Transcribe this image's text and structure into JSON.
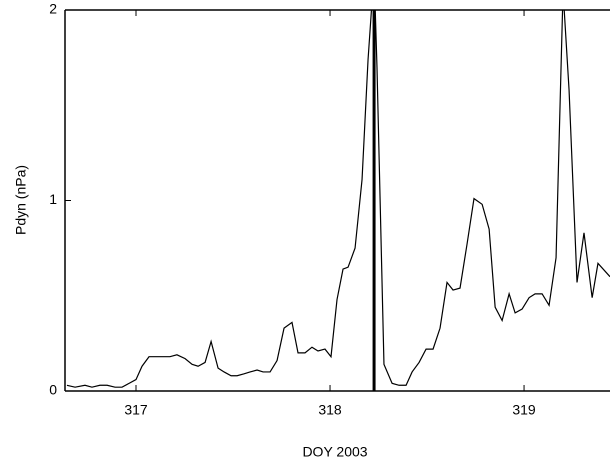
{
  "chart_data": {
    "type": "line",
    "xlabel": "DOY 2003",
    "ylabel": "Pdyn (nPa)",
    "xlim": [
      316.634,
      319.443
    ],
    "ylim": [
      0,
      2
    ],
    "xticks": [
      317,
      318,
      319
    ],
    "yticks": [
      0,
      1,
      2
    ],
    "vline": 318.227,
    "series": [
      {
        "color": "#000000",
        "x": [
          316.644,
          316.686,
          316.737,
          316.773,
          316.814,
          316.851,
          316.892,
          316.928,
          316.964,
          317.0,
          317.031,
          317.067,
          317.103,
          317.139,
          317.175,
          317.211,
          317.253,
          317.289,
          317.32,
          317.356,
          317.387,
          317.423,
          317.454,
          317.49,
          317.521,
          317.557,
          317.588,
          317.624,
          317.655,
          317.691,
          317.727,
          317.763,
          317.804,
          317.835,
          317.871,
          317.907,
          317.938,
          317.974,
          318.005,
          318.036,
          318.067,
          318.093,
          318.129,
          318.165,
          318.196,
          318.227,
          318.242,
          318.278,
          318.32,
          318.356,
          318.392,
          318.423,
          318.459,
          318.495,
          318.531,
          318.567,
          318.603,
          318.634,
          318.67,
          318.706,
          318.742,
          318.784,
          318.82,
          318.851,
          318.887,
          318.923,
          318.954,
          318.99,
          319.026,
          319.057,
          319.093,
          319.129,
          319.165,
          319.201,
          319.232,
          319.273,
          319.309,
          319.351,
          319.381,
          319.443
        ],
        "values": [
          0.03,
          0.02,
          0.03,
          0.02,
          0.03,
          0.03,
          0.02,
          0.02,
          0.04,
          0.06,
          0.13,
          0.18,
          0.18,
          0.18,
          0.18,
          0.19,
          0.17,
          0.14,
          0.13,
          0.15,
          0.26,
          0.12,
          0.1,
          0.08,
          0.08,
          0.09,
          0.1,
          0.11,
          0.1,
          0.1,
          0.16,
          0.33,
          0.36,
          0.2,
          0.2,
          0.23,
          0.21,
          0.22,
          0.18,
          0.48,
          0.64,
          0.65,
          0.75,
          1.11,
          1.74,
          2.2,
          1.7,
          0.14,
          0.04,
          0.03,
          0.03,
          0.1,
          0.15,
          0.22,
          0.22,
          0.33,
          0.57,
          0.53,
          0.54,
          0.77,
          1.01,
          0.98,
          0.85,
          0.44,
          0.37,
          0.51,
          0.41,
          0.43,
          0.49,
          0.51,
          0.51,
          0.45,
          0.7,
          2.1,
          1.58,
          0.57,
          0.83,
          0.49,
          0.67,
          0.6
        ]
      }
    ]
  }
}
